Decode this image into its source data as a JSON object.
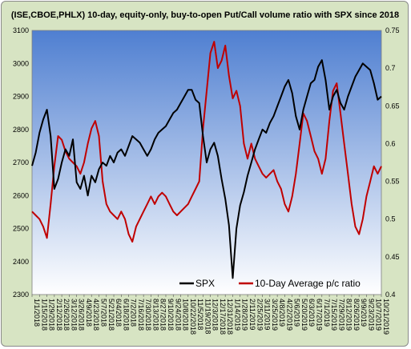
{
  "chart_data": {
    "type": "line",
    "title": "(ISE,CBOE,PHLX) 10-day, equity-only, buy-to-open Put/Call volume ratio with SPX since 2018",
    "left_axis": {
      "ylim": [
        2300,
        3100
      ],
      "ticks": [
        2300,
        2400,
        2500,
        2600,
        2700,
        2800,
        2900,
        3000,
        3100
      ]
    },
    "right_axis": {
      "ylim": [
        0.4,
        0.75
      ],
      "ticks": [
        "0.4",
        "0.45",
        "0.5",
        "0.55",
        "0.6",
        "0.65",
        "0.7",
        "0.75"
      ]
    },
    "x_ticks": [
      "1/1/2018",
      "1/15/2018",
      "1/29/2018",
      "2/12/2018",
      "2/26/2018",
      "3/12/2018",
      "3/26/2018",
      "4/9/2018",
      "4/23/2018",
      "5/7/2018",
      "5/21/2018",
      "6/4/2018",
      "6/18/2018",
      "7/2/2018",
      "7/16/2018",
      "7/30/2018",
      "8/13/2018",
      "8/27/2018",
      "9/10/2018",
      "9/24/2018",
      "10/8/2018",
      "10/22/2018",
      "11/5/2018",
      "11/19/2018",
      "12/3/2018",
      "12/17/2018",
      "12/31/2018",
      "1/14/2019",
      "1/28/2019",
      "2/11/2019",
      "2/25/2019",
      "3/11/2019",
      "3/25/2019",
      "4/8/2019",
      "4/22/2019",
      "5/6/2019",
      "5/20/2019",
      "6/3/2019",
      "6/17/2019",
      "7/1/2019",
      "7/15/2019",
      "7/29/2019",
      "8/12/2019",
      "8/26/2019",
      "9/9/2019",
      "9/23/2019",
      "10/7/2019",
      "10/21/2019"
    ],
    "series": [
      {
        "name": "SPX",
        "color": "#000000",
        "axis": "left",
        "points": [
          [
            0,
            2690
          ],
          [
            1,
            2730
          ],
          [
            2,
            2790
          ],
          [
            3,
            2830
          ],
          [
            4,
            2860
          ],
          [
            5,
            2780
          ],
          [
            6,
            2620
          ],
          [
            7,
            2650
          ],
          [
            8,
            2700
          ],
          [
            9,
            2740
          ],
          [
            10,
            2720
          ],
          [
            11,
            2770
          ],
          [
            12,
            2640
          ],
          [
            13,
            2620
          ],
          [
            14,
            2660
          ],
          [
            15,
            2600
          ],
          [
            16,
            2660
          ],
          [
            17,
            2640
          ],
          [
            18,
            2680
          ],
          [
            19,
            2700
          ],
          [
            20,
            2690
          ],
          [
            21,
            2720
          ],
          [
            22,
            2700
          ],
          [
            23,
            2730
          ],
          [
            24,
            2740
          ],
          [
            25,
            2720
          ],
          [
            26,
            2750
          ],
          [
            27,
            2780
          ],
          [
            28,
            2770
          ],
          [
            29,
            2760
          ],
          [
            30,
            2740
          ],
          [
            31,
            2720
          ],
          [
            32,
            2740
          ],
          [
            33,
            2770
          ],
          [
            34,
            2790
          ],
          [
            35,
            2800
          ],
          [
            36,
            2810
          ],
          [
            37,
            2830
          ],
          [
            38,
            2850
          ],
          [
            39,
            2860
          ],
          [
            40,
            2880
          ],
          [
            41,
            2900
          ],
          [
            42,
            2920
          ],
          [
            43,
            2920
          ],
          [
            44,
            2890
          ],
          [
            45,
            2880
          ],
          [
            46,
            2780
          ],
          [
            47,
            2700
          ],
          [
            48,
            2740
          ],
          [
            49,
            2760
          ],
          [
            50,
            2720
          ],
          [
            51,
            2650
          ],
          [
            52,
            2590
          ],
          [
            53,
            2510
          ],
          [
            54,
            2350
          ],
          [
            55,
            2500
          ],
          [
            56,
            2570
          ],
          [
            57,
            2610
          ],
          [
            58,
            2660
          ],
          [
            59,
            2700
          ],
          [
            60,
            2740
          ],
          [
            61,
            2770
          ],
          [
            62,
            2800
          ],
          [
            63,
            2790
          ],
          [
            64,
            2820
          ],
          [
            65,
            2840
          ],
          [
            66,
            2870
          ],
          [
            67,
            2900
          ],
          [
            68,
            2930
          ],
          [
            69,
            2950
          ],
          [
            70,
            2910
          ],
          [
            71,
            2840
          ],
          [
            72,
            2800
          ],
          [
            73,
            2860
          ],
          [
            74,
            2900
          ],
          [
            75,
            2940
          ],
          [
            76,
            2950
          ],
          [
            77,
            2990
          ],
          [
            78,
            3010
          ],
          [
            79,
            2950
          ],
          [
            80,
            2860
          ],
          [
            81,
            2900
          ],
          [
            82,
            2920
          ],
          [
            83,
            2880
          ],
          [
            84,
            2860
          ],
          [
            85,
            2900
          ],
          [
            86,
            2930
          ],
          [
            87,
            2960
          ],
          [
            88,
            2980
          ],
          [
            89,
            3000
          ],
          [
            90,
            2990
          ],
          [
            91,
            2980
          ],
          [
            92,
            2940
          ],
          [
            93,
            2890
          ],
          [
            94,
            2900
          ]
        ]
      },
      {
        "name": "10-Day Average p/c ratio",
        "color": "#c00000",
        "axis": "right",
        "points": [
          [
            0,
            0.51
          ],
          [
            1,
            0.505
          ],
          [
            2,
            0.5
          ],
          [
            3,
            0.49
          ],
          [
            4,
            0.475
          ],
          [
            5,
            0.52
          ],
          [
            6,
            0.57
          ],
          [
            7,
            0.61
          ],
          [
            8,
            0.605
          ],
          [
            9,
            0.59
          ],
          [
            10,
            0.58
          ],
          [
            11,
            0.575
          ],
          [
            12,
            0.57
          ],
          [
            13,
            0.56
          ],
          [
            14,
            0.575
          ],
          [
            15,
            0.6
          ],
          [
            16,
            0.62
          ],
          [
            17,
            0.63
          ],
          [
            18,
            0.61
          ],
          [
            19,
            0.55
          ],
          [
            20,
            0.52
          ],
          [
            21,
            0.51
          ],
          [
            22,
            0.505
          ],
          [
            23,
            0.5
          ],
          [
            24,
            0.51
          ],
          [
            25,
            0.5
          ],
          [
            26,
            0.48
          ],
          [
            27,
            0.47
          ],
          [
            28,
            0.49
          ],
          [
            29,
            0.5
          ],
          [
            30,
            0.51
          ],
          [
            31,
            0.52
          ],
          [
            32,
            0.53
          ],
          [
            33,
            0.52
          ],
          [
            34,
            0.53
          ],
          [
            35,
            0.535
          ],
          [
            36,
            0.53
          ],
          [
            37,
            0.52
          ],
          [
            38,
            0.51
          ],
          [
            39,
            0.505
          ],
          [
            40,
            0.51
          ],
          [
            41,
            0.515
          ],
          [
            42,
            0.52
          ],
          [
            43,
            0.53
          ],
          [
            44,
            0.54
          ],
          [
            45,
            0.55
          ],
          [
            46,
            0.62
          ],
          [
            47,
            0.67
          ],
          [
            48,
            0.72
          ],
          [
            49,
            0.735
          ],
          [
            50,
            0.7
          ],
          [
            51,
            0.71
          ],
          [
            52,
            0.73
          ],
          [
            53,
            0.69
          ],
          [
            54,
            0.66
          ],
          [
            55,
            0.67
          ],
          [
            56,
            0.65
          ],
          [
            57,
            0.6
          ],
          [
            58,
            0.58
          ],
          [
            59,
            0.6
          ],
          [
            60,
            0.58
          ],
          [
            61,
            0.57
          ],
          [
            62,
            0.56
          ],
          [
            63,
            0.555
          ],
          [
            64,
            0.56
          ],
          [
            65,
            0.565
          ],
          [
            66,
            0.55
          ],
          [
            67,
            0.54
          ],
          [
            68,
            0.52
          ],
          [
            69,
            0.51
          ],
          [
            70,
            0.53
          ],
          [
            71,
            0.56
          ],
          [
            72,
            0.6
          ],
          [
            73,
            0.64
          ],
          [
            74,
            0.63
          ],
          [
            75,
            0.61
          ],
          [
            76,
            0.59
          ],
          [
            77,
            0.58
          ],
          [
            78,
            0.56
          ],
          [
            79,
            0.58
          ],
          [
            80,
            0.63
          ],
          [
            81,
            0.67
          ],
          [
            82,
            0.68
          ],
          [
            83,
            0.64
          ],
          [
            84,
            0.6
          ],
          [
            85,
            0.56
          ],
          [
            86,
            0.52
          ],
          [
            87,
            0.49
          ],
          [
            88,
            0.48
          ],
          [
            89,
            0.5
          ],
          [
            90,
            0.53
          ],
          [
            91,
            0.55
          ],
          [
            92,
            0.57
          ],
          [
            93,
            0.56
          ],
          [
            94,
            0.57
          ]
        ]
      }
    ],
    "legend_position": "bottom-center",
    "plot_background": [
      "#4f7fd1",
      "#ffffff"
    ]
  }
}
